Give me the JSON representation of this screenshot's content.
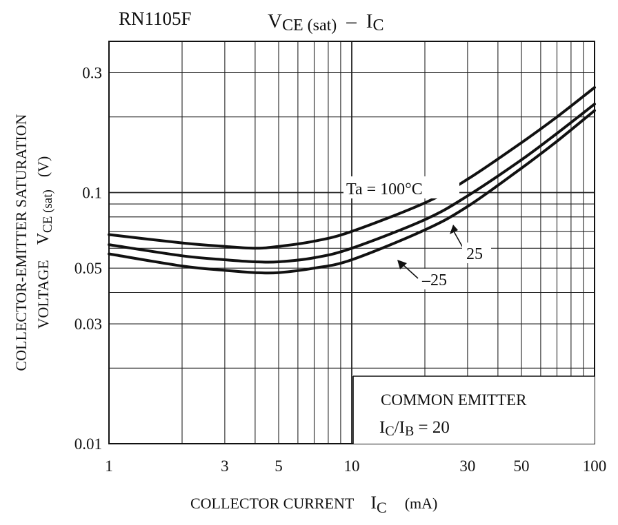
{
  "chart_data": {
    "type": "line",
    "title_part": "RN1105F",
    "title_formula": {
      "main": "V",
      "sub": "CE (sat)",
      "dash": "–",
      "rhs_main": "I",
      "rhs_sub": "C"
    },
    "xlabel": {
      "text": "COLLECTOR CURRENT",
      "sym": "I",
      "sub": "C",
      "unit": "(mA)"
    },
    "ylabel": {
      "line1": "COLLECTOR-EMITTER SATURATION",
      "line2_pre": "VOLTAGE",
      "sym": "V",
      "sub": "CE (sat)",
      "unit": "(V)"
    },
    "x_scale": "log",
    "y_scale": "log",
    "xlim": [
      1,
      100
    ],
    "ylim": [
      0.01,
      0.4
    ],
    "x_ticks": [
      {
        "value": 1,
        "label": "1"
      },
      {
        "value": 3,
        "label": "3"
      },
      {
        "value": 5,
        "label": "5"
      },
      {
        "value": 10,
        "label": "10"
      },
      {
        "value": 30,
        "label": "30"
      },
      {
        "value": 50,
        "label": "50"
      },
      {
        "value": 100,
        "label": "100"
      }
    ],
    "y_ticks": [
      {
        "value": 0.01,
        "label": "0.01"
      },
      {
        "value": 0.03,
        "label": "0.03"
      },
      {
        "value": 0.05,
        "label": "0.05"
      },
      {
        "value": 0.1,
        "label": "0.1"
      },
      {
        "value": 0.3,
        "label": "0.3"
      }
    ],
    "x_grid": [
      2,
      3,
      4,
      5,
      6,
      7,
      8,
      9,
      10,
      20,
      30,
      40,
      50,
      60,
      70,
      80,
      90
    ],
    "y_grid": [
      0.02,
      0.03,
      0.04,
      0.05,
      0.06,
      0.07,
      0.08,
      0.09,
      0.1,
      0.2,
      0.3,
      0.4
    ],
    "series": [
      {
        "name": "Ta = 100°C",
        "x": [
          1,
          2,
          3,
          4,
          5,
          7,
          10,
          20,
          30,
          50,
          70,
          100
        ],
        "y": [
          0.068,
          0.063,
          0.061,
          0.06,
          0.061,
          0.064,
          0.07,
          0.091,
          0.113,
          0.158,
          0.2,
          0.262
        ]
      },
      {
        "name": "25",
        "x": [
          1,
          2,
          3,
          4,
          5,
          7,
          10,
          20,
          30,
          50,
          70,
          100
        ],
        "y": [
          0.062,
          0.056,
          0.054,
          0.053,
          0.053,
          0.055,
          0.06,
          0.078,
          0.097,
          0.135,
          0.172,
          0.225
        ]
      },
      {
        "name": "–25",
        "x": [
          1,
          2,
          3,
          4,
          5,
          7,
          10,
          20,
          30,
          50,
          70,
          100
        ],
        "y": [
          0.057,
          0.051,
          0.049,
          0.048,
          0.048,
          0.05,
          0.054,
          0.071,
          0.088,
          0.125,
          0.16,
          0.212
        ]
      }
    ],
    "annotations": {
      "ta_label": "Ta = 100°C",
      "label_25": "25",
      "label_m25": "–25",
      "note_line1": "COMMON EMITTER",
      "note_line2": {
        "sym1": "I",
        "sub1": "C",
        "slash": "/",
        "sym2": "I",
        "sub2": "B",
        "rest": " = 20"
      }
    }
  }
}
